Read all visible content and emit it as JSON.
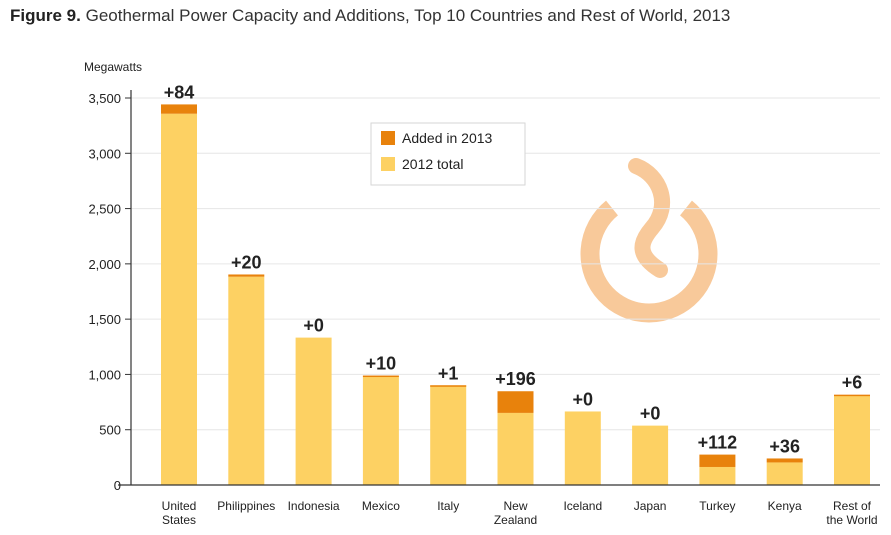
{
  "title": {
    "figure_label": "Figure 9.",
    "text": "Geothermal Power Capacity and Additions, Top 10 Countries and Rest of World, 2013"
  },
  "colors": {
    "added": "#E8820C",
    "base": "#FDD163",
    "watermark": "#F8C99A",
    "axis": "#333333",
    "grid": "#E6E6E6",
    "text": "#222222"
  },
  "chart_data": {
    "type": "bar",
    "stacked": true,
    "ylabel": "Megawatts",
    "ylim": [
      0,
      3500
    ],
    "yticks": [
      0,
      500,
      1000,
      1500,
      2000,
      2500,
      3000,
      3500
    ],
    "ytick_labels": [
      "0",
      "500",
      "1,000",
      "1,500",
      "2,000",
      "2,500",
      "3,000",
      "3,500"
    ],
    "grid": "horizontal",
    "legend": {
      "placement": "top-center",
      "entries": [
        "Added in 2013",
        "2012 total"
      ]
    },
    "categories": [
      [
        "United",
        "States"
      ],
      [
        "Philippines"
      ],
      [
        "Indonesia"
      ],
      [
        "Mexico"
      ],
      [
        "Italy"
      ],
      [
        "New",
        "Zealand"
      ],
      [
        "Iceland"
      ],
      [
        "Japan"
      ],
      [
        "Turkey"
      ],
      [
        "Kenya"
      ],
      [
        "Rest of",
        "the World"
      ]
    ],
    "series": [
      {
        "name": "2012 total",
        "values": [
          3358,
          1884,
          1333,
          980,
          901,
          652,
          665,
          537,
          163,
          204,
          811
        ]
      },
      {
        "name": "Added in 2013",
        "values": [
          84,
          20,
          0,
          10,
          1,
          196,
          0,
          0,
          112,
          36,
          6
        ]
      }
    ],
    "data_labels": [
      "+84",
      "+20",
      "+0",
      "+10",
      "+1",
      "+196",
      "+0",
      "+0",
      "+112",
      "+36",
      "+6"
    ]
  }
}
